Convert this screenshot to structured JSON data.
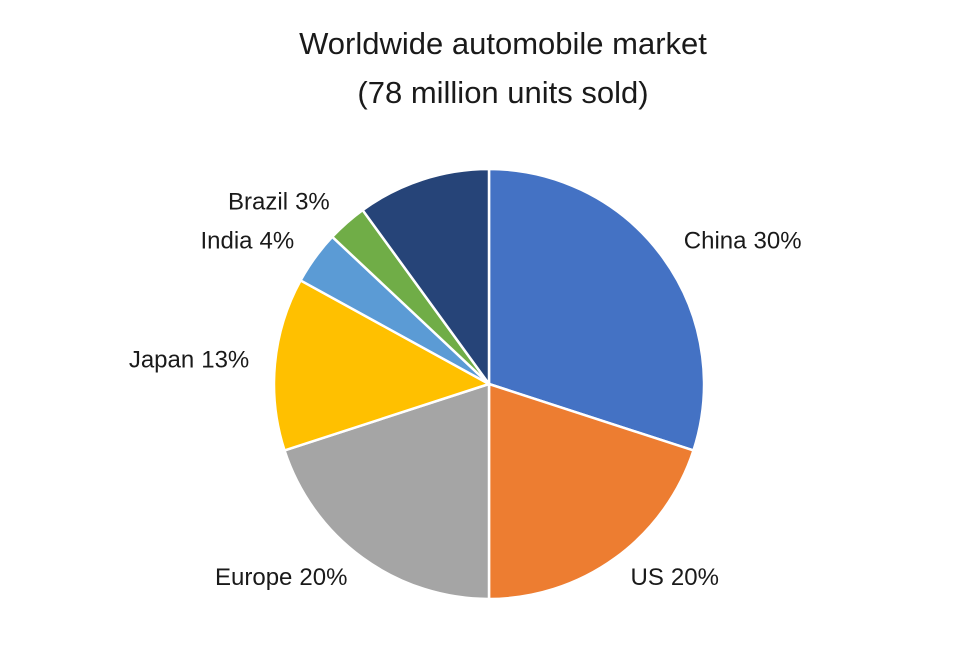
{
  "chart_data": {
    "type": "pie",
    "title": "Worldwide automobile market",
    "subtitle": "(78 million units sold)",
    "categories": [
      "China",
      "US",
      "Europe",
      "Japan",
      "India",
      "Brazil",
      null
    ],
    "values": [
      30,
      20,
      20,
      13,
      4,
      3,
      10
    ],
    "value_labels": [
      "30%",
      "20%",
      "20%",
      "13%",
      "4%",
      "3%",
      null
    ],
    "colors": [
      "#4472c4",
      "#ed7d31",
      "#a5a5a5",
      "#ffc000",
      "#5b9bd5",
      "#70ad47",
      "#264478"
    ]
  }
}
